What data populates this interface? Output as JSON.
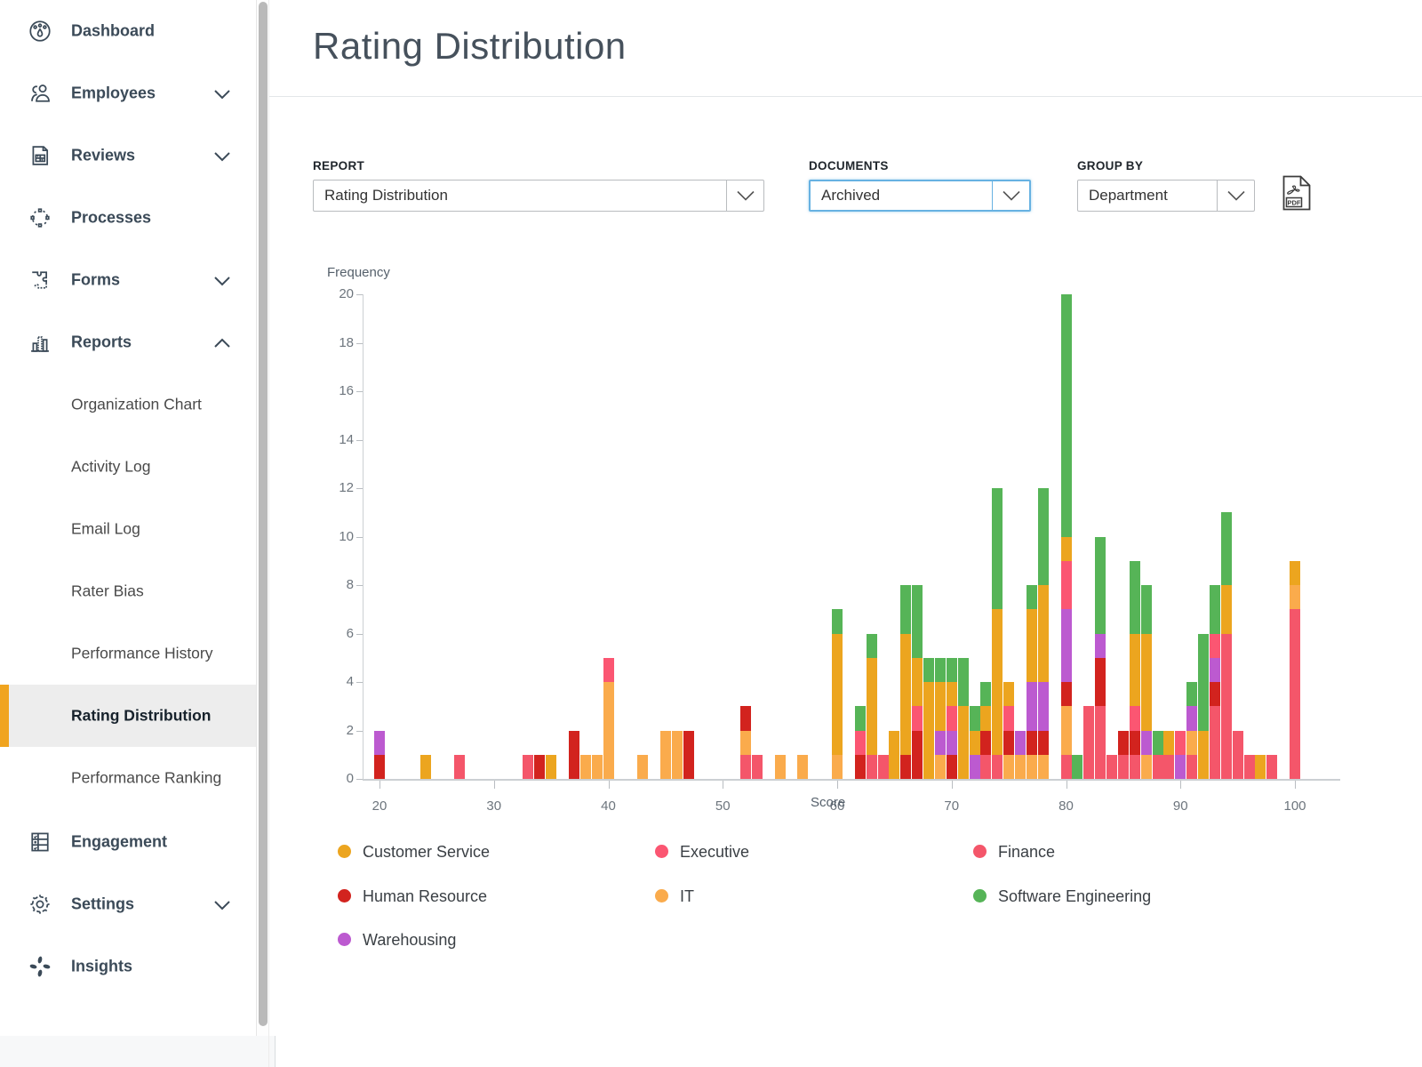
{
  "header": {
    "title": "Rating Distribution"
  },
  "sidebar": {
    "accent_color": "#f0a41f",
    "items": [
      {
        "label": "Dashboard",
        "icon": "dashboard-icon",
        "chevron": null
      },
      {
        "label": "Employees",
        "icon": "employees-icon",
        "chevron": "down"
      },
      {
        "label": "Reviews",
        "icon": "reviews-icon",
        "chevron": "down"
      },
      {
        "label": "Processes",
        "icon": "processes-icon",
        "chevron": null
      },
      {
        "label": "Forms",
        "icon": "forms-icon",
        "chevron": "down"
      },
      {
        "label": "Reports",
        "icon": "reports-icon",
        "chevron": "up"
      }
    ],
    "reports_subitems": [
      {
        "label": "Organization Chart",
        "selected": false
      },
      {
        "label": "Activity Log",
        "selected": false
      },
      {
        "label": "Email Log",
        "selected": false
      },
      {
        "label": "Rater Bias",
        "selected": false
      },
      {
        "label": "Performance History",
        "selected": false
      },
      {
        "label": "Rating Distribution",
        "selected": true
      },
      {
        "label": "Performance Ranking",
        "selected": false
      }
    ],
    "bottom_items": [
      {
        "label": "Engagement",
        "icon": "engagement-icon",
        "chevron": null
      },
      {
        "label": "Settings",
        "icon": "settings-icon",
        "chevron": "down"
      },
      {
        "label": "Insights",
        "icon": "insights-icon",
        "chevron": null
      }
    ]
  },
  "controls": {
    "report": {
      "label": "REPORT",
      "value": "Rating Distribution"
    },
    "documents": {
      "label": "DOCUMENTS",
      "value": "Archived",
      "focused": true
    },
    "group_by": {
      "label": "GROUP BY",
      "value": "Department"
    },
    "export": {
      "pdf_label": "PDF"
    }
  },
  "chart_data": {
    "type": "bar",
    "stacked": true,
    "xlabel": "Score",
    "ylabel": "Frequency",
    "xlim": [
      18,
      104
    ],
    "ylim": [
      0,
      20
    ],
    "x_ticks": [
      20,
      30,
      40,
      50,
      60,
      70,
      80,
      90,
      100
    ],
    "y_ticks": [
      0,
      2,
      4,
      6,
      8,
      10,
      12,
      14,
      16,
      18,
      20
    ],
    "grid": false,
    "bin_width": 1,
    "stack_order": [
      "Finance",
      "IT",
      "Human Resource",
      "Warehousing",
      "Executive",
      "Customer Service",
      "Software Engineering"
    ],
    "colors": {
      "Customer Service": "#ECA51F",
      "Executive": "#FB5672",
      "Finance": "#F4566A",
      "Human Resource": "#D2231E",
      "IT": "#FAAB4C",
      "Software Engineering": "#56B457",
      "Warehousing": "#BC5AD0"
    },
    "bars": [
      {
        "score": 20,
        "values": {
          "Human Resource": 1,
          "Warehousing": 1
        }
      },
      {
        "score": 24,
        "values": {
          "Customer Service": 1
        }
      },
      {
        "score": 27,
        "values": {
          "Finance": 1
        }
      },
      {
        "score": 33,
        "values": {
          "Finance": 1
        }
      },
      {
        "score": 34,
        "values": {
          "Human Resource": 1
        }
      },
      {
        "score": 35,
        "values": {
          "Customer Service": 1
        }
      },
      {
        "score": 37,
        "values": {
          "Human Resource": 2
        }
      },
      {
        "score": 38,
        "values": {
          "IT": 1
        }
      },
      {
        "score": 39,
        "values": {
          "IT": 1
        }
      },
      {
        "score": 40,
        "values": {
          "IT": 4,
          "Executive": 1
        }
      },
      {
        "score": 43,
        "values": {
          "IT": 1
        }
      },
      {
        "score": 45,
        "values": {
          "IT": 2
        }
      },
      {
        "score": 46,
        "values": {
          "IT": 2
        }
      },
      {
        "score": 47,
        "values": {
          "Human Resource": 2
        }
      },
      {
        "score": 52,
        "values": {
          "Finance": 1,
          "IT": 1,
          "Human Resource": 1
        }
      },
      {
        "score": 53,
        "values": {
          "Finance": 1
        }
      },
      {
        "score": 55,
        "values": {
          "IT": 1
        }
      },
      {
        "score": 57,
        "values": {
          "IT": 1
        }
      },
      {
        "score": 60,
        "values": {
          "IT": 1,
          "Customer Service": 5,
          "Software Engineering": 1
        }
      },
      {
        "score": 62,
        "values": {
          "Human Resource": 1,
          "Executive": 1,
          "Software Engineering": 1
        }
      },
      {
        "score": 63,
        "values": {
          "Finance": 1,
          "Customer Service": 4,
          "Software Engineering": 1
        }
      },
      {
        "score": 64,
        "values": {
          "Finance": 1
        }
      },
      {
        "score": 65,
        "values": {
          "Customer Service": 2
        }
      },
      {
        "score": 66,
        "values": {
          "Human Resource": 1,
          "Customer Service": 5,
          "Software Engineering": 2
        }
      },
      {
        "score": 67,
        "values": {
          "Human Resource": 2,
          "Executive": 1,
          "Customer Service": 2,
          "Software Engineering": 3
        }
      },
      {
        "score": 68,
        "values": {
          "Customer Service": 4,
          "Software Engineering": 1
        }
      },
      {
        "score": 69,
        "values": {
          "IT": 1,
          "Warehousing": 1,
          "Customer Service": 2,
          "Software Engineering": 1
        }
      },
      {
        "score": 70,
        "values": {
          "Human Resource": 1,
          "Warehousing": 1,
          "Executive": 1,
          "Customer Service": 1,
          "Software Engineering": 1
        }
      },
      {
        "score": 71,
        "values": {
          "Customer Service": 3,
          "Software Engineering": 2
        }
      },
      {
        "score": 72,
        "values": {
          "Warehousing": 1,
          "Customer Service": 1,
          "Software Engineering": 1
        }
      },
      {
        "score": 73,
        "values": {
          "Finance": 1,
          "Human Resource": 1,
          "Customer Service": 1,
          "Software Engineering": 1
        }
      },
      {
        "score": 74,
        "values": {
          "Finance": 1,
          "Customer Service": 6,
          "Software Engineering": 5
        }
      },
      {
        "score": 75,
        "values": {
          "IT": 1,
          "Human Resource": 1,
          "Executive": 1,
          "Customer Service": 1
        }
      },
      {
        "score": 76,
        "values": {
          "IT": 1,
          "Warehousing": 1
        }
      },
      {
        "score": 77,
        "values": {
          "IT": 1,
          "Human Resource": 1,
          "Warehousing": 2,
          "Customer Service": 3,
          "Software Engineering": 1
        }
      },
      {
        "score": 78,
        "values": {
          "IT": 1,
          "Human Resource": 1,
          "Warehousing": 2,
          "Customer Service": 4,
          "Software Engineering": 4
        }
      },
      {
        "score": 80,
        "values": {
          "Finance": 1,
          "IT": 2,
          "Human Resource": 1,
          "Warehousing": 3,
          "Executive": 2,
          "Customer Service": 1,
          "Software Engineering": 10
        }
      },
      {
        "score": 81,
        "values": {
          "Software Engineering": 1
        }
      },
      {
        "score": 82,
        "values": {
          "Finance": 3
        }
      },
      {
        "score": 83,
        "values": {
          "Finance": 3,
          "Human Resource": 2,
          "Warehousing": 1,
          "Software Engineering": 4
        }
      },
      {
        "score": 84,
        "values": {
          "Finance": 1
        }
      },
      {
        "score": 85,
        "values": {
          "Finance": 1,
          "Human Resource": 1
        }
      },
      {
        "score": 86,
        "values": {
          "Finance": 1,
          "Human Resource": 1,
          "Executive": 1,
          "Customer Service": 3,
          "Software Engineering": 3
        }
      },
      {
        "score": 87,
        "values": {
          "IT": 1,
          "Warehousing": 1,
          "Customer Service": 4,
          "Software Engineering": 2
        }
      },
      {
        "score": 88,
        "values": {
          "Finance": 1,
          "Software Engineering": 1
        }
      },
      {
        "score": 89,
        "values": {
          "Finance": 1,
          "Customer Service": 1
        }
      },
      {
        "score": 90,
        "values": {
          "Warehousing": 1,
          "Executive": 1
        }
      },
      {
        "score": 91,
        "values": {
          "Finance": 1,
          "IT": 1,
          "Warehousing": 1,
          "Software Engineering": 1
        }
      },
      {
        "score": 92,
        "values": {
          "Customer Service": 2,
          "Software Engineering": 4
        }
      },
      {
        "score": 93,
        "values": {
          "Finance": 3,
          "Human Resource": 1,
          "Warehousing": 1,
          "Executive": 1,
          "Software Engineering": 2
        }
      },
      {
        "score": 94,
        "values": {
          "Finance": 6,
          "Customer Service": 2,
          "Software Engineering": 3
        }
      },
      {
        "score": 95,
        "values": {
          "Finance": 2
        }
      },
      {
        "score": 96,
        "values": {
          "Finance": 1
        }
      },
      {
        "score": 97,
        "values": {
          "Customer Service": 1
        }
      },
      {
        "score": 98,
        "values": {
          "Finance": 1
        }
      },
      {
        "score": 100,
        "values": {
          "Finance": 7,
          "IT": 1,
          "Customer Service": 1
        }
      }
    ]
  },
  "legend": {
    "items": [
      {
        "label": "Customer Service",
        "color": "#ECA51F"
      },
      {
        "label": "Executive",
        "color": "#FB5672"
      },
      {
        "label": "Finance",
        "color": "#F4566A"
      },
      {
        "label": "Human Resource",
        "color": "#D2231E"
      },
      {
        "label": "IT",
        "color": "#FAAB4C"
      },
      {
        "label": "Software Engineering",
        "color": "#56B457"
      },
      {
        "label": "Warehousing",
        "color": "#BC5AD0"
      }
    ]
  }
}
